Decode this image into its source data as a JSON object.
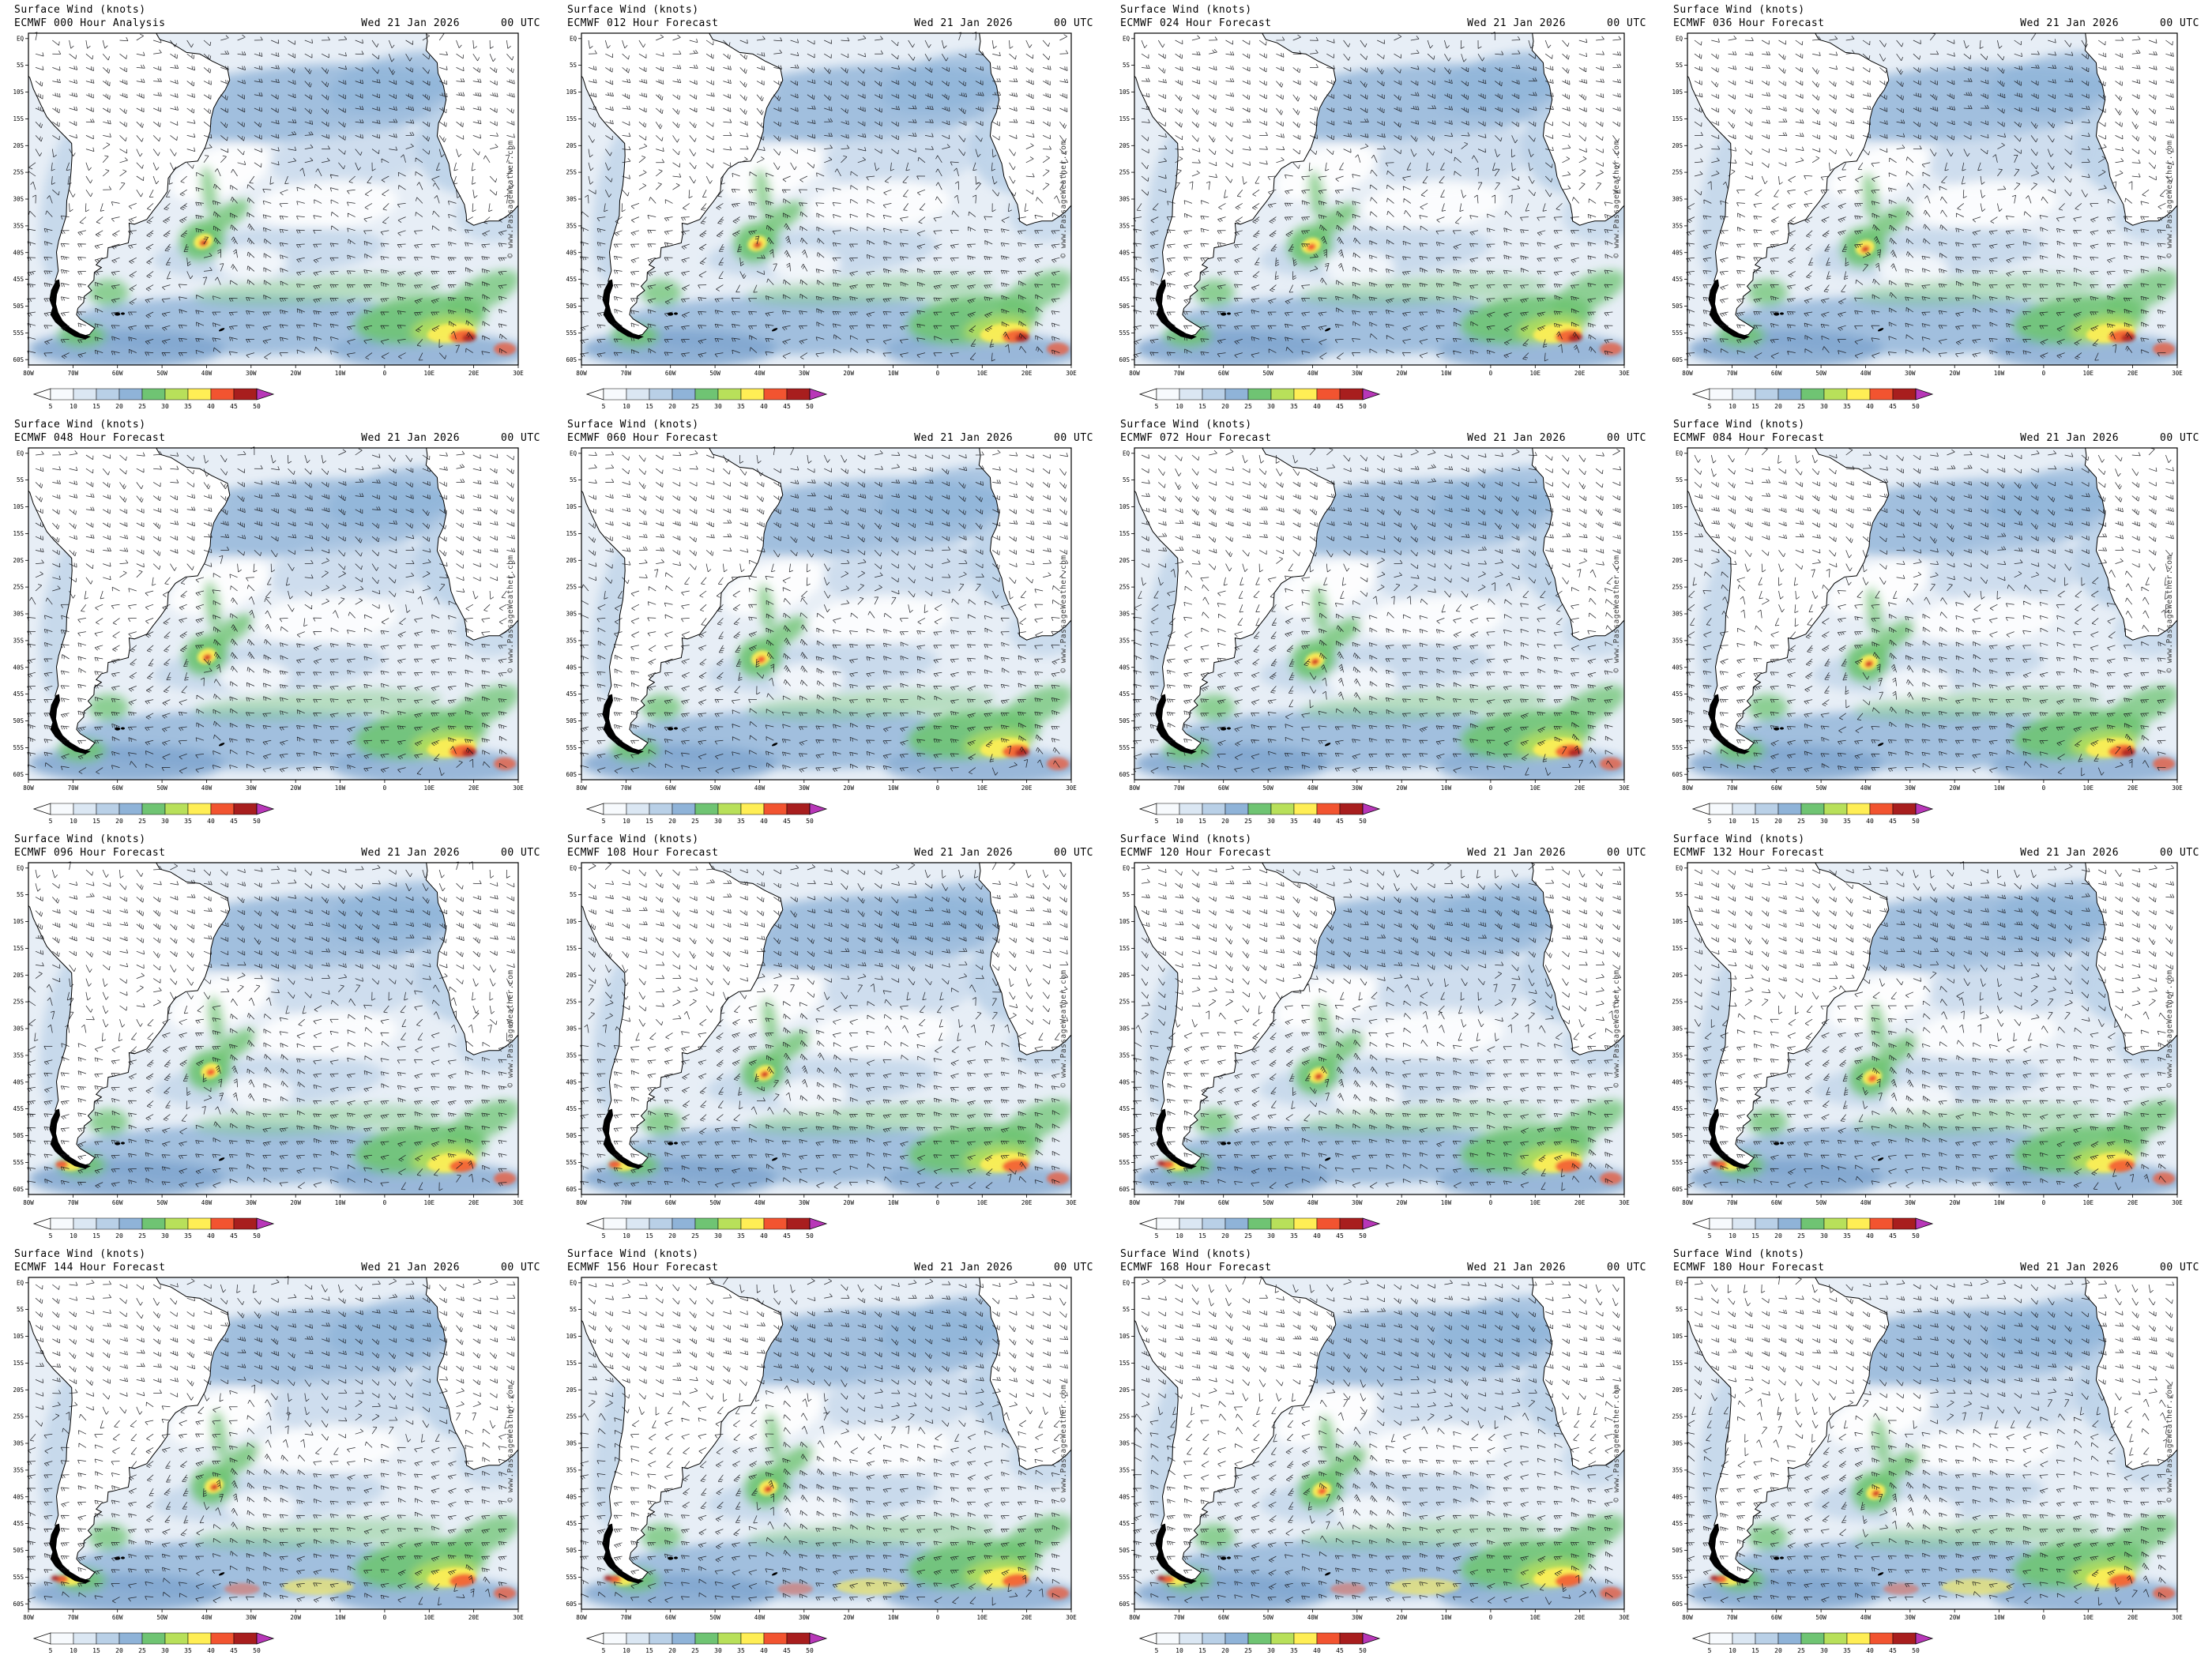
{
  "shared": {
    "title": "Surface Wind (knots)",
    "date": "Wed 21 Jan 2026",
    "time": "00 UTC",
    "watermark": "© www.PassageWeather.com",
    "lat_labels": [
      "EQ",
      "5S",
      "10S",
      "15S",
      "20S",
      "25S",
      "30S",
      "35S",
      "40S",
      "45S",
      "50S",
      "55S",
      "60S"
    ],
    "lon_labels": [
      "80W",
      "70W",
      "60W",
      "50W",
      "40W",
      "30W",
      "20W",
      "10W",
      "0",
      "10E",
      "20E",
      "30E"
    ],
    "map_palette": {
      "ocean_base": "#e7eef6",
      "blue_deep": "#7fa6cf",
      "land": "#ffffff",
      "coast": "#000000"
    },
    "scale": {
      "units": "knots",
      "ticks": [
        "5",
        "10",
        "15",
        "20",
        "25",
        "30",
        "35",
        "40",
        "45",
        "50"
      ],
      "segment_colors": [
        "#f7fafd",
        "#dbe7f3",
        "#b9d0e7",
        "#8fb3d8",
        "#6fc473",
        "#b8e05a",
        "#ffee55",
        "#f25430",
        "#a81e1e"
      ],
      "left_arrow_color": "#ffffff",
      "right_arrow_color": "#b837b8"
    }
  },
  "panels": [
    {
      "model_label": "ECMWF 000 Hour Analysis"
    },
    {
      "model_label": "ECMWF 012 Hour Forecast"
    },
    {
      "model_label": "ECMWF 024 Hour Forecast"
    },
    {
      "model_label": "ECMWF 036 Hour Forecast"
    },
    {
      "model_label": "ECMWF 048 Hour Forecast"
    },
    {
      "model_label": "ECMWF 060 Hour Forecast"
    },
    {
      "model_label": "ECMWF 072 Hour Forecast"
    },
    {
      "model_label": "ECMWF 084 Hour Forecast"
    },
    {
      "model_label": "ECMWF 096 Hour Forecast"
    },
    {
      "model_label": "ECMWF 108 Hour Forecast"
    },
    {
      "model_label": "ECMWF 120 Hour Forecast"
    },
    {
      "model_label": "ECMWF 132 Hour Forecast"
    },
    {
      "model_label": "ECMWF 144 Hour Forecast"
    },
    {
      "model_label": "ECMWF 156 Hour Forecast"
    },
    {
      "model_label": "ECMWF 168 Hour Forecast"
    },
    {
      "model_label": "ECMWF 180 Hour Forecast"
    }
  ]
}
